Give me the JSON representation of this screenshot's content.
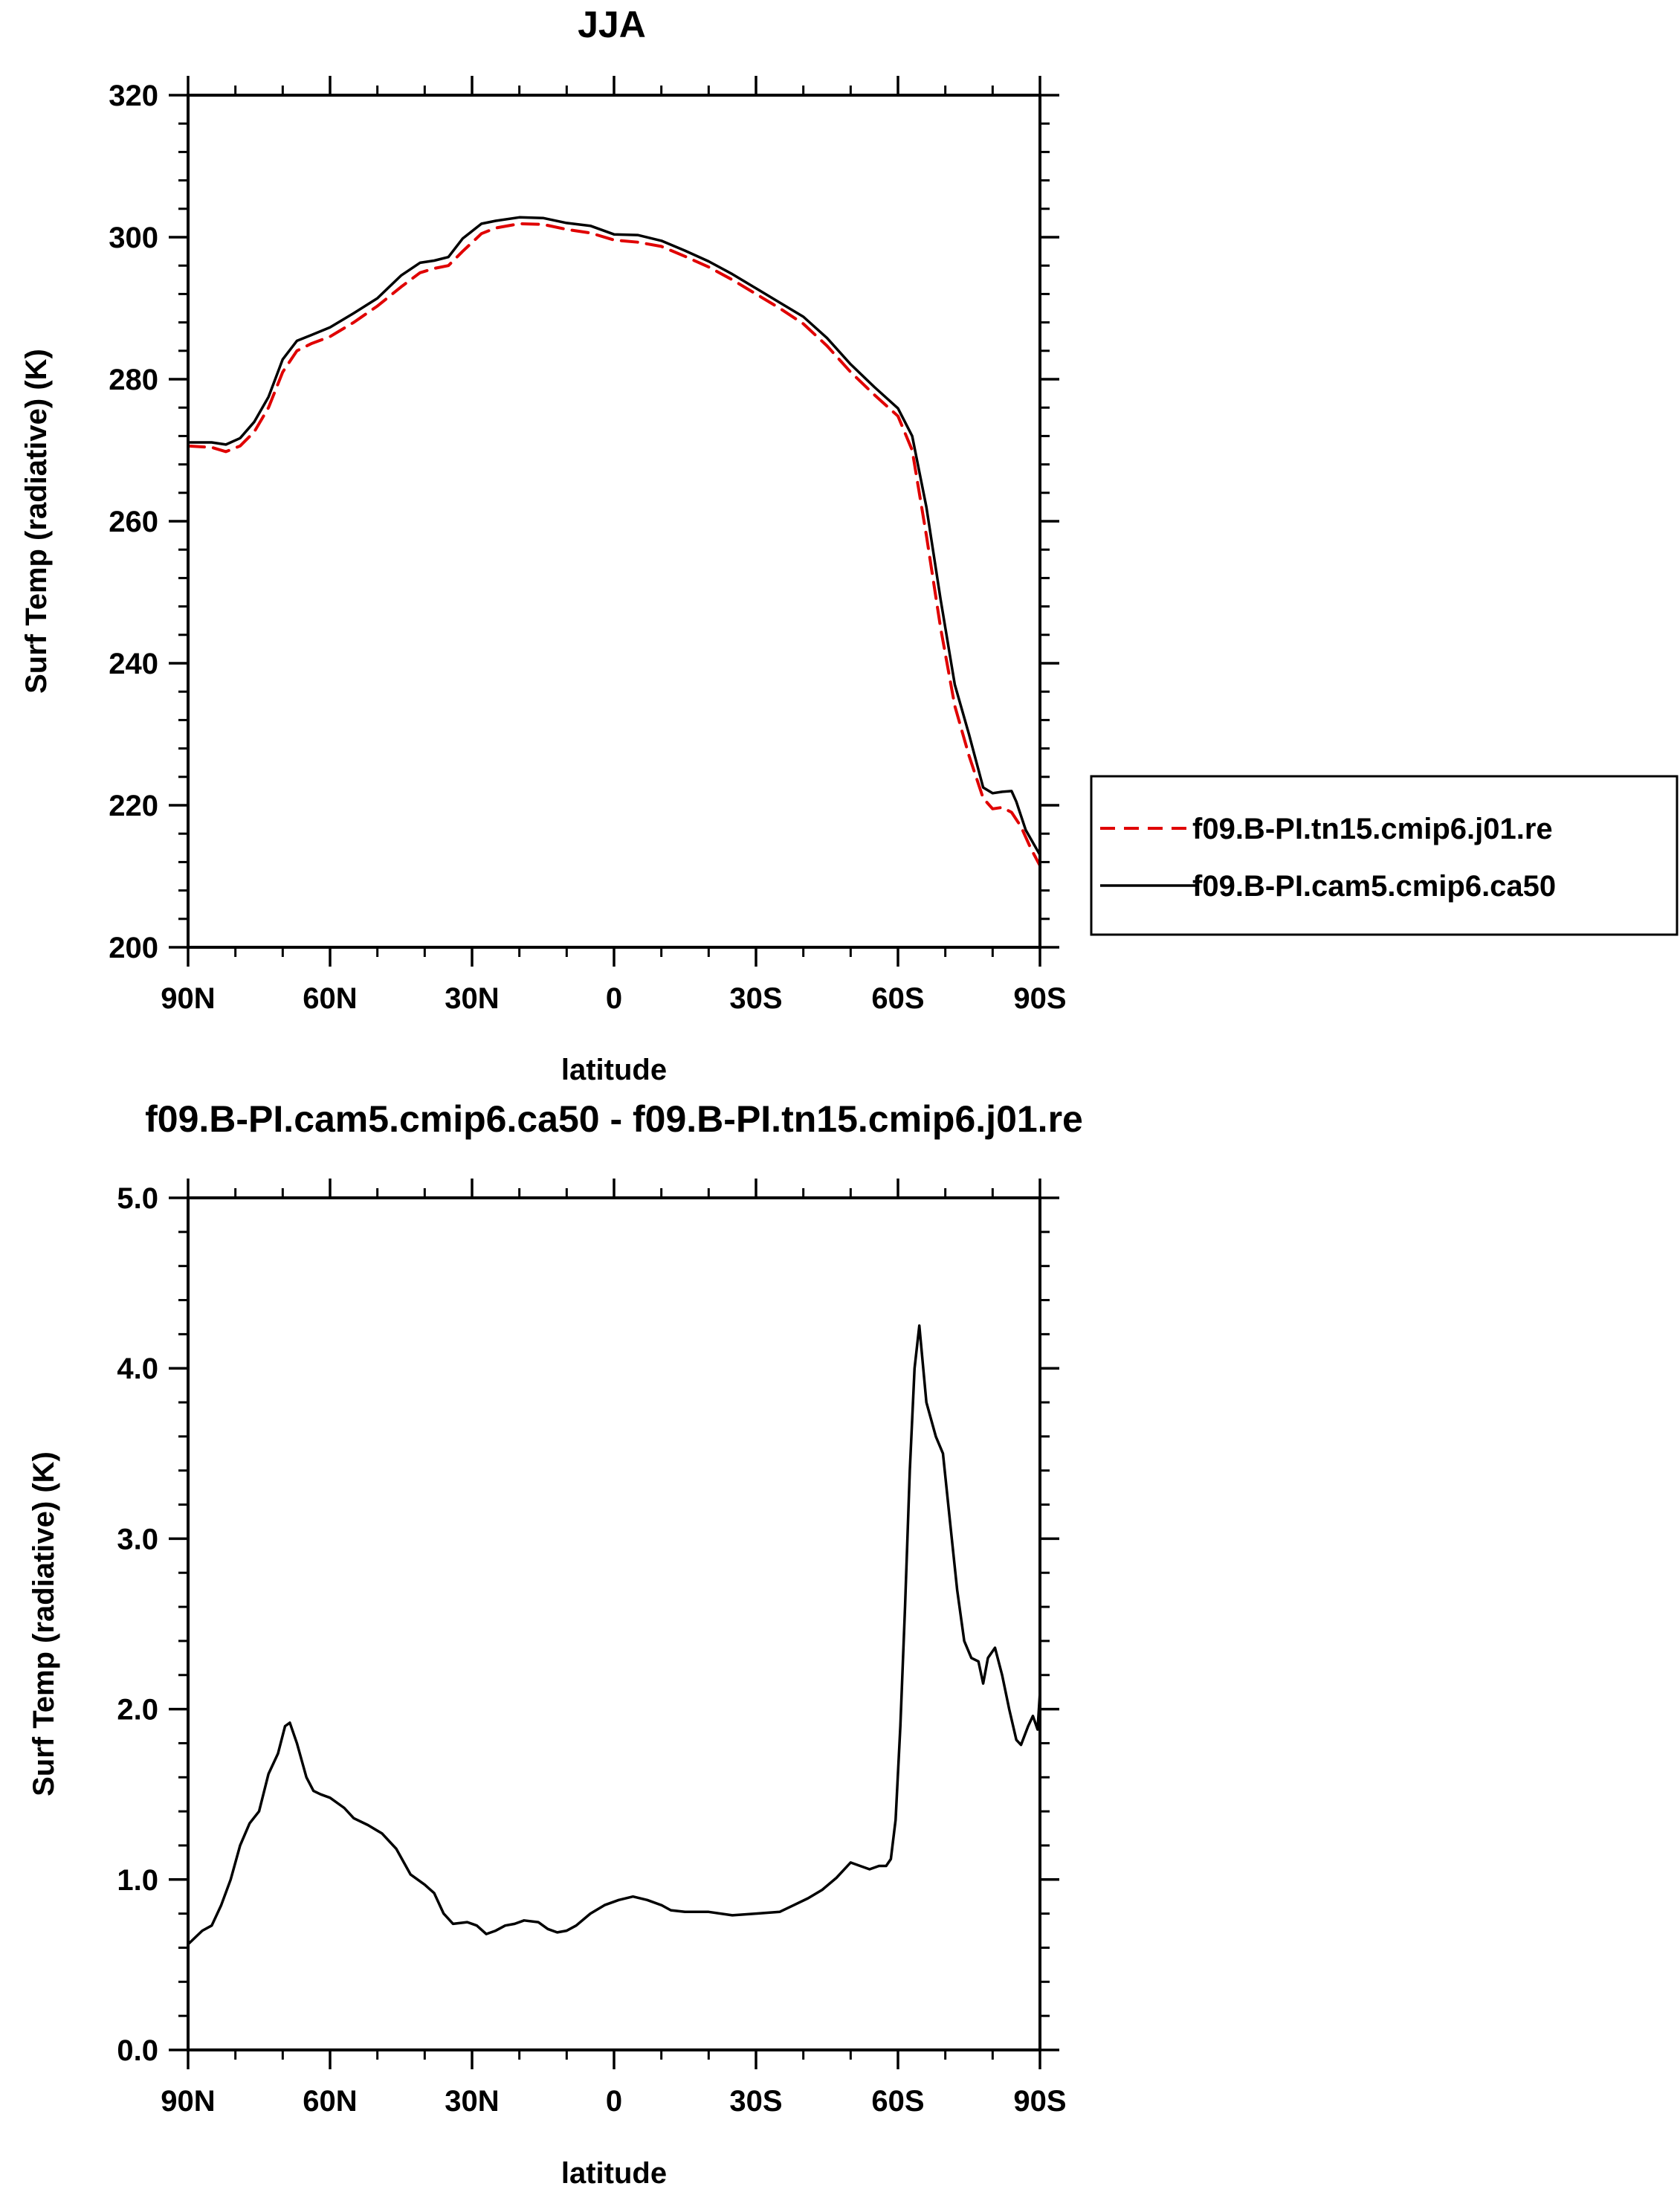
{
  "chart_data": [
    {
      "type": "line",
      "title": "JJA",
      "xlabel": "latitude",
      "ylabel": "Surf Temp (radiative) (K)",
      "xlim": [
        90,
        -90
      ],
      "ylim": [
        200,
        320
      ],
      "x_ticks": [
        90,
        60,
        30,
        0,
        -30,
        -60,
        -90
      ],
      "x_tick_labels": [
        "90N",
        "60N",
        "30N",
        "0",
        "30S",
        "60S",
        "90S"
      ],
      "y_ticks": [
        200,
        220,
        240,
        260,
        280,
        300,
        320
      ],
      "y_tick_labels": [
        "200",
        "220",
        "240",
        "260",
        "280",
        "300",
        "320"
      ],
      "legend_position": "right",
      "series": [
        {
          "name": "f09.B-PI.tn15.cmip6.j01.re",
          "color": "#e00000",
          "style": "dashed",
          "points": [
            [
              90,
              270.6
            ],
            [
              85,
              270.4
            ],
            [
              82,
              269.8
            ],
            [
              79,
              270.6
            ],
            [
              76,
              272.6
            ],
            [
              73,
              276.0
            ],
            [
              70,
              281.0
            ],
            [
              67,
              284.0
            ],
            [
              64,
              285.0
            ],
            [
              60,
              286.0
            ],
            [
              55,
              288.0
            ],
            [
              50,
              290.3
            ],
            [
              45,
              293.0
            ],
            [
              41,
              295.0
            ],
            [
              38,
              295.6
            ],
            [
              35,
              296.0
            ],
            [
              32,
              298.0
            ],
            [
              28,
              300.5
            ],
            [
              25,
              301.3
            ],
            [
              20,
              301.9
            ],
            [
              15,
              301.8
            ],
            [
              10,
              301.1
            ],
            [
              5,
              300.6
            ],
            [
              0,
              299.6
            ],
            [
              -5,
              299.3
            ],
            [
              -10,
              298.7
            ],
            [
              -15,
              297.3
            ],
            [
              -20,
              295.8
            ],
            [
              -25,
              294.0
            ],
            [
              -30,
              292.0
            ],
            [
              -35,
              290.0
            ],
            [
              -40,
              287.8
            ],
            [
              -45,
              284.7
            ],
            [
              -50,
              281.0
            ],
            [
              -55,
              277.8
            ],
            [
              -60,
              274.8
            ],
            [
              -63,
              270.0
            ],
            [
              -66,
              258.0
            ],
            [
              -69,
              245.0
            ],
            [
              -72,
              234.0
            ],
            [
              -75,
              227.0
            ],
            [
              -78,
              221.0
            ],
            [
              -80,
              219.5
            ],
            [
              -82,
              219.7
            ],
            [
              -84,
              219.0
            ],
            [
              -86,
              217.0
            ],
            [
              -88,
              214.0
            ],
            [
              -90,
              211.5
            ]
          ]
        },
        {
          "name": "f09.B-PI.cam5.cmip6.ca50",
          "color": "#000000",
          "style": "solid",
          "points": [
            [
              90,
              271.1
            ],
            [
              85,
              271.1
            ],
            [
              82,
              270.8
            ],
            [
              79,
              271.7
            ],
            [
              76,
              274.0
            ],
            [
              73,
              277.5
            ],
            [
              70,
              282.8
            ],
            [
              67,
              285.4
            ],
            [
              64,
              286.2
            ],
            [
              60,
              287.3
            ],
            [
              55,
              289.3
            ],
            [
              50,
              291.4
            ],
            [
              45,
              294.6
            ],
            [
              41,
              296.4
            ],
            [
              38,
              296.7
            ],
            [
              35,
              297.2
            ],
            [
              32,
              299.8
            ],
            [
              28,
              301.9
            ],
            [
              25,
              302.3
            ],
            [
              20,
              302.8
            ],
            [
              15,
              302.7
            ],
            [
              10,
              302.0
            ],
            [
              5,
              301.6
            ],
            [
              0,
              300.4
            ],
            [
              -5,
              300.3
            ],
            [
              -10,
              299.5
            ],
            [
              -15,
              298.1
            ],
            [
              -20,
              296.6
            ],
            [
              -25,
              294.8
            ],
            [
              -30,
              292.8
            ],
            [
              -35,
              290.8
            ],
            [
              -40,
              288.8
            ],
            [
              -45,
              285.8
            ],
            [
              -50,
              282.1
            ],
            [
              -55,
              278.9
            ],
            [
              -60,
              275.9
            ],
            [
              -63,
              272.0
            ],
            [
              -66,
              262.0
            ],
            [
              -69,
              249.0
            ],
            [
              -72,
              237.0
            ],
            [
              -75,
              230.0
            ],
            [
              -78,
              222.5
            ],
            [
              -80,
              221.7
            ],
            [
              -82,
              221.9
            ],
            [
              -84,
              222.0
            ],
            [
              -85,
              220.5
            ],
            [
              -87,
              216.5
            ],
            [
              -90,
              213.0
            ]
          ]
        }
      ]
    },
    {
      "type": "line",
      "title": "f09.B-PI.cam5.cmip6.ca50 - f09.B-PI.tn15.cmip6.j01.re",
      "xlabel": "latitude",
      "ylabel": "Surf Temp (radiative) (K)",
      "xlim": [
        90,
        -90
      ],
      "ylim": [
        0.0,
        5.0
      ],
      "x_ticks": [
        90,
        60,
        30,
        0,
        -30,
        -60,
        -90
      ],
      "x_tick_labels": [
        "90N",
        "60N",
        "30N",
        "0",
        "30S",
        "60S",
        "90S"
      ],
      "y_ticks": [
        0.0,
        1.0,
        2.0,
        3.0,
        4.0,
        5.0
      ],
      "y_tick_labels": [
        "0.0",
        "1.0",
        "2.0",
        "3.0",
        "4.0",
        "5.0"
      ],
      "series": [
        {
          "color": "#000000",
          "style": "solid",
          "points": [
            [
              90,
              0.62
            ],
            [
              87,
              0.7
            ],
            [
              85,
              0.73
            ],
            [
              83,
              0.85
            ],
            [
              81,
              1.0
            ],
            [
              79,
              1.2
            ],
            [
              77,
              1.33
            ],
            [
              75,
              1.4
            ],
            [
              73,
              1.62
            ],
            [
              71,
              1.74
            ],
            [
              69.5,
              1.9
            ],
            [
              68.5,
              1.92
            ],
            [
              67,
              1.8
            ],
            [
              65,
              1.6
            ],
            [
              63.5,
              1.52
            ],
            [
              62,
              1.5
            ],
            [
              60,
              1.48
            ],
            [
              57,
              1.42
            ],
            [
              55,
              1.36
            ],
            [
              52,
              1.32
            ],
            [
              49,
              1.27
            ],
            [
              46,
              1.18
            ],
            [
              43,
              1.03
            ],
            [
              40,
              0.97
            ],
            [
              38,
              0.92
            ],
            [
              36,
              0.8
            ],
            [
              34,
              0.74
            ],
            [
              31,
              0.75
            ],
            [
              29,
              0.73
            ],
            [
              27,
              0.68
            ],
            [
              25,
              0.7
            ],
            [
              23,
              0.73
            ],
            [
              21,
              0.74
            ],
            [
              19,
              0.76
            ],
            [
              16,
              0.75
            ],
            [
              14,
              0.71
            ],
            [
              12,
              0.69
            ],
            [
              10,
              0.7
            ],
            [
              8,
              0.73
            ],
            [
              5,
              0.8
            ],
            [
              2,
              0.85
            ],
            [
              -1,
              0.88
            ],
            [
              -4,
              0.9
            ],
            [
              -7,
              0.88
            ],
            [
              -10,
              0.85
            ],
            [
              -12,
              0.82
            ],
            [
              -15,
              0.81
            ],
            [
              -20,
              0.81
            ],
            [
              -25,
              0.79
            ],
            [
              -30,
              0.8
            ],
            [
              -35,
              0.81
            ],
            [
              -38,
              0.85
            ],
            [
              -41,
              0.89
            ],
            [
              -44,
              0.94
            ],
            [
              -47,
              1.01
            ],
            [
              -50,
              1.1
            ],
            [
              -52,
              1.08
            ],
            [
              -54,
              1.06
            ],
            [
              -56,
              1.08
            ],
            [
              -57.5,
              1.08
            ],
            [
              -58.5,
              1.12
            ],
            [
              -59.5,
              1.35
            ],
            [
              -60.5,
              1.9
            ],
            [
              -61.5,
              2.6
            ],
            [
              -62.5,
              3.4
            ],
            [
              -63.5,
              4.0
            ],
            [
              -64.5,
              4.25
            ],
            [
              -66,
              3.8
            ],
            [
              -68,
              3.6
            ],
            [
              -69.5,
              3.5
            ],
            [
              -71,
              3.1
            ],
            [
              -72.5,
              2.7
            ],
            [
              -74,
              2.4
            ],
            [
              -75.5,
              2.3
            ],
            [
              -77,
              2.28
            ],
            [
              -78,
              2.15
            ],
            [
              -79,
              2.3
            ],
            [
              -80.5,
              2.36
            ],
            [
              -82,
              2.2
            ],
            [
              -83.5,
              2.0
            ],
            [
              -85,
              1.82
            ],
            [
              -86,
              1.79
            ],
            [
              -87.5,
              1.9
            ],
            [
              -88.5,
              1.96
            ],
            [
              -89.5,
              1.88
            ],
            [
              -90,
              2.1
            ]
          ]
        }
      ]
    }
  ]
}
